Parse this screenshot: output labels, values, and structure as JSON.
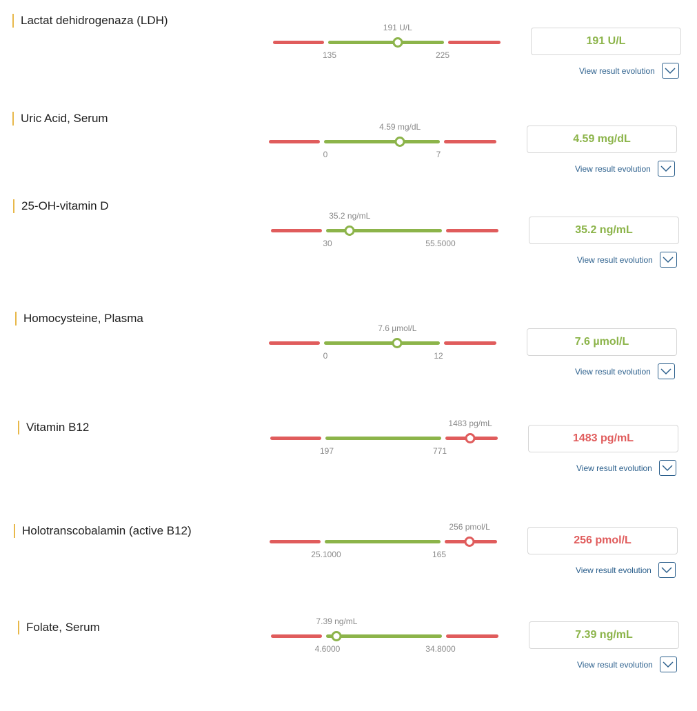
{
  "evolution_label": "View result evolution",
  "colors": {
    "in_range": "#8cb44a",
    "out_of_range": "#e05c5c",
    "accent": "#e8b84a",
    "link": "#2b5f8c"
  },
  "results": [
    {
      "name": "Lactat dehidrogenaza (LDH)",
      "value": "191 U/L",
      "low": "135",
      "high": "225",
      "position": 0.6,
      "in_range": true
    },
    {
      "name": "Uric Acid, Serum",
      "value": "4.59 mg/dL",
      "low": "0",
      "high": "7",
      "position": 0.656,
      "in_range": true
    },
    {
      "name": "25-OH-vitamin D",
      "value": "35.2 ng/mL",
      "low": "30",
      "high": "55.5000",
      "position": 0.204,
      "in_range": true
    },
    {
      "name": "Homocysteine, Plasma",
      "value": "7.6 µmol/L",
      "low": "0",
      "high": "12",
      "position": 0.633,
      "in_range": true
    },
    {
      "name": "Vitamin B12",
      "value": "1483 pg/mL",
      "low": "197",
      "high": "771",
      "position": 1.5,
      "in_range": false
    },
    {
      "name": "Holotranscobalamin (active B12)",
      "value": "256 pmol/L",
      "low": "25.1000",
      "high": "165",
      "position": 1.5,
      "in_range": false
    },
    {
      "name": "Folate, Serum",
      "value": "7.39 ng/mL",
      "low": "4.6000",
      "high": "34.8000",
      "position": 0.092,
      "in_range": true
    }
  ]
}
